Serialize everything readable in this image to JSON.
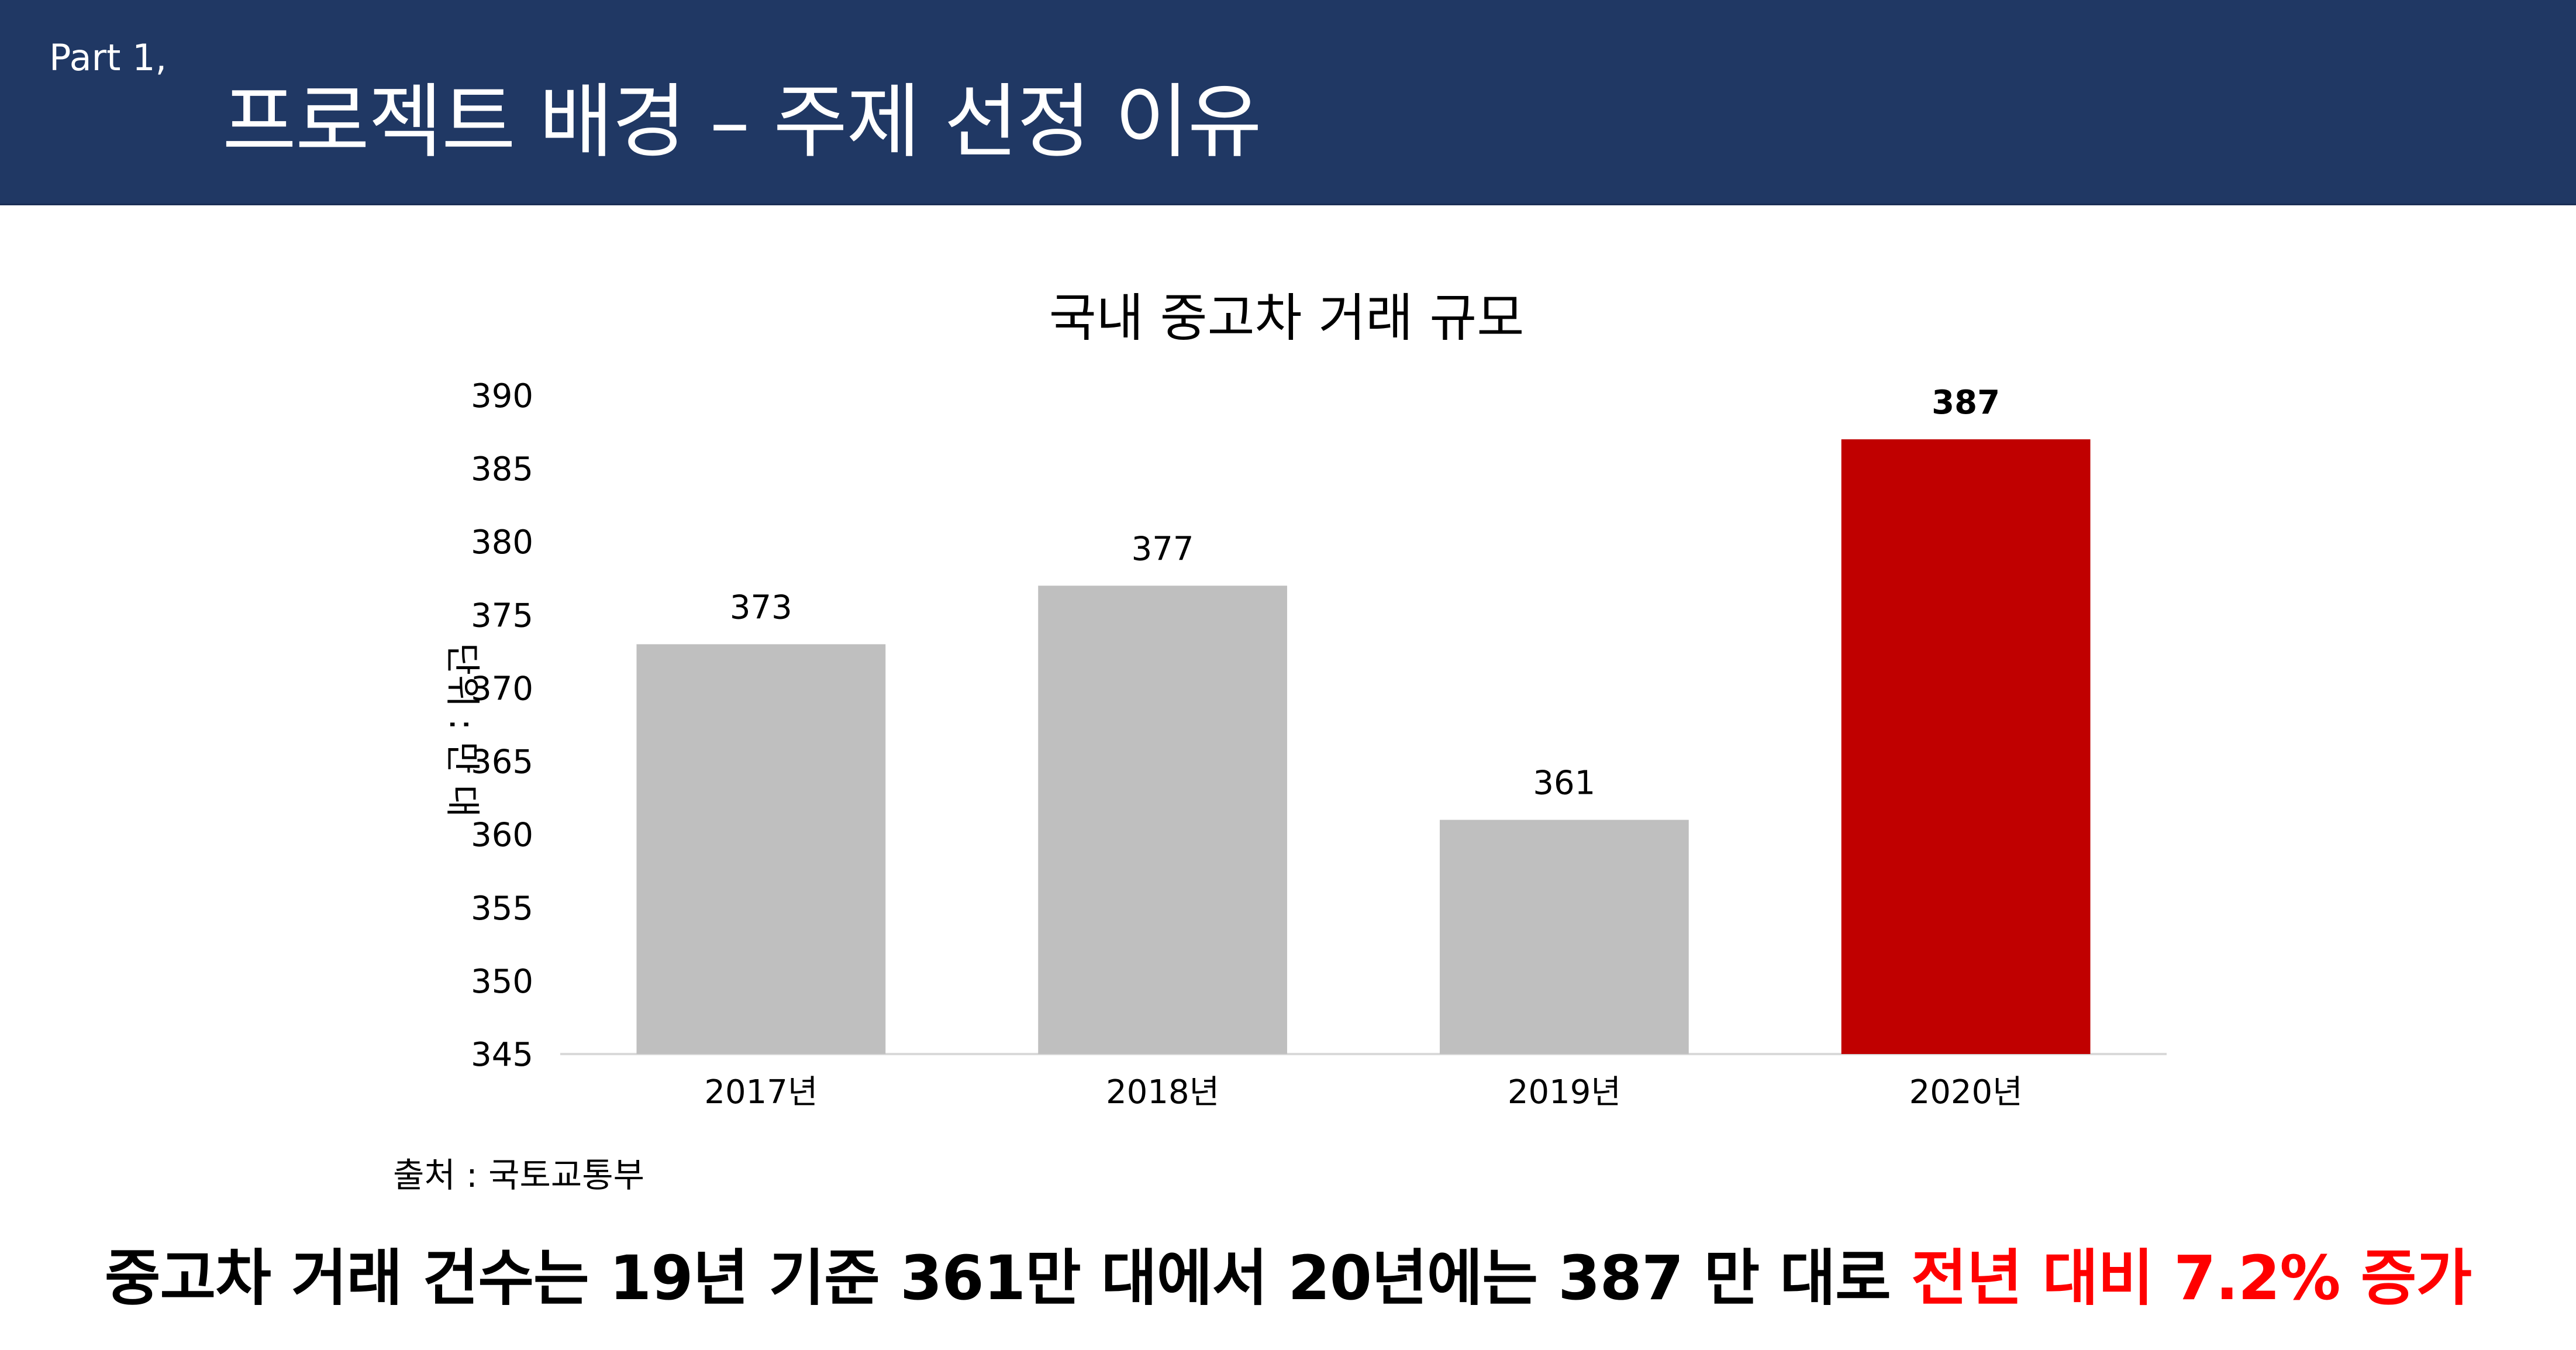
{
  "header": {
    "part_label": "Part 1,",
    "title": "프로젝트 배경 – 주제 선정 이유"
  },
  "chart_data": {
    "type": "bar",
    "title": "국내 중고차 거래 규모",
    "ylabel": "단위 : 만 대",
    "xlabel": "",
    "categories": [
      "2017년",
      "2018년",
      "2019년",
      "2020년"
    ],
    "values": [
      373,
      377,
      361,
      387
    ],
    "value_labels": [
      "373",
      "377",
      "361",
      "387"
    ],
    "ylim": [
      345,
      390
    ],
    "yticks": [
      345,
      350,
      355,
      360,
      365,
      370,
      375,
      380,
      385,
      390
    ],
    "ytick_labels": [
      "345",
      "350",
      "355",
      "360",
      "365",
      "370",
      "375",
      "380",
      "385",
      "390"
    ],
    "grid": false,
    "legend": "none",
    "highlight_index": 3,
    "colors": {
      "bar": "#bfbfbf",
      "highlight": "#c00000",
      "axis": "#d9d9d9",
      "text": "#000000"
    }
  },
  "source": {
    "text": "출처 : 국토교통부"
  },
  "summary": {
    "text_main": "중고차 거래 건수는 19년 기준 361만 대에서 20년에는 387 만 대로 ",
    "text_highlight": "전년 대비 7.2% 증가"
  }
}
